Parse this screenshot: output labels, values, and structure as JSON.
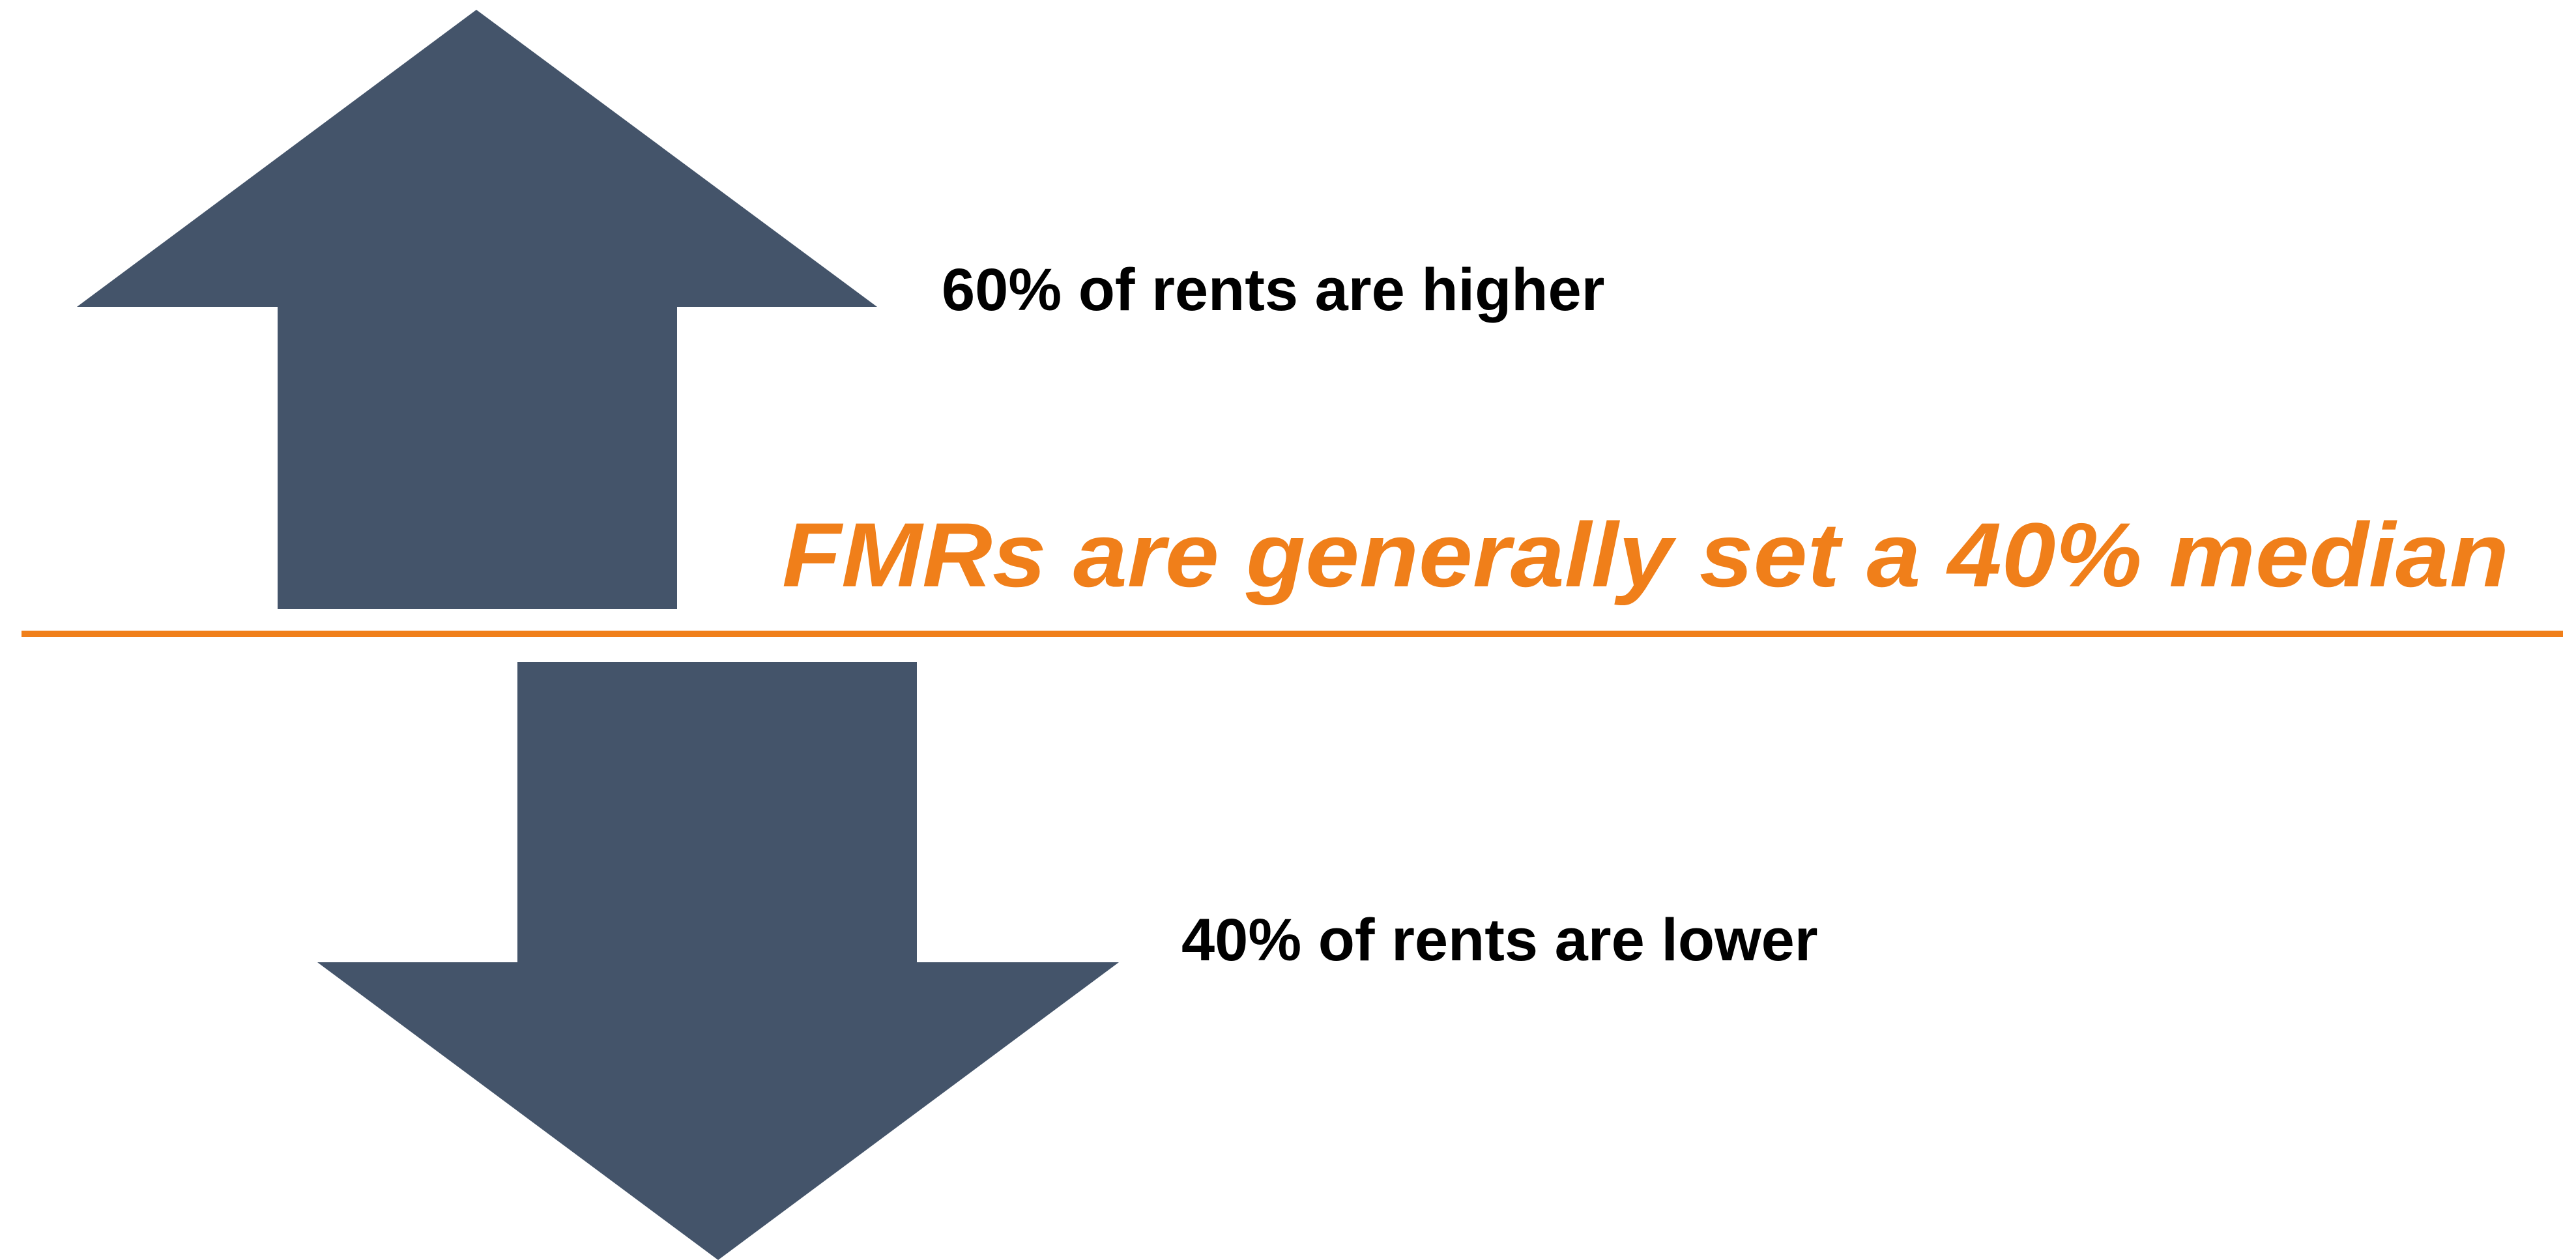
{
  "upper_label": "60% of rents are higher",
  "headline": "FMRs are generally set a 40% median",
  "lower_label": "40% of rents are lower"
}
